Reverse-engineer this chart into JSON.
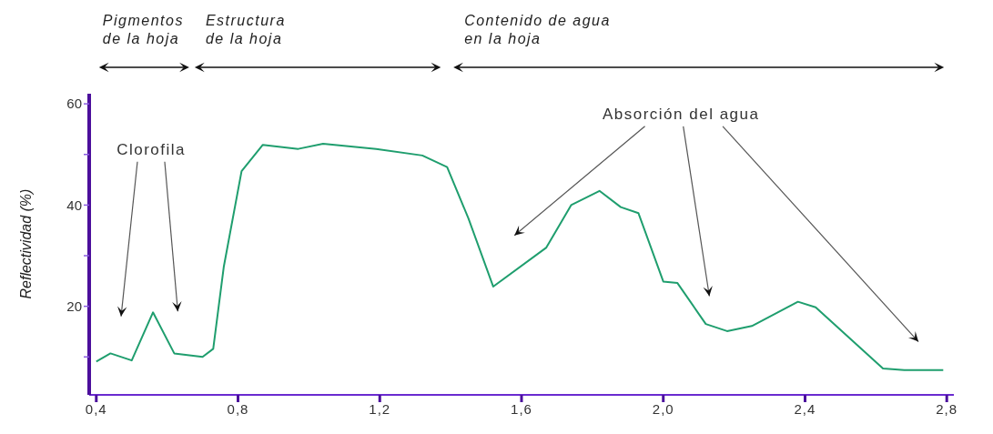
{
  "chart_data": {
    "type": "line",
    "ylabel": "Reflectividad (%)",
    "x": [
      0.4,
      0.44,
      0.5,
      0.56,
      0.62,
      0.7,
      0.73,
      0.76,
      0.81,
      0.87,
      0.97,
      1.04,
      1.19,
      1.32,
      1.39,
      1.45,
      1.52,
      1.67,
      1.74,
      1.82,
      1.88,
      1.93,
      2.0,
      2.04,
      2.12,
      2.18,
      2.25,
      2.38,
      2.43,
      2.62,
      2.68,
      2.79
    ],
    "series": [
      {
        "color": "#1f9e6e",
        "values": [
          9.1,
          10.7,
          9.3,
          18.8,
          10.7,
          10.0,
          11.6,
          27.9,
          46.7,
          51.9,
          51.1,
          52.1,
          51.1,
          49.8,
          47.5,
          37.4,
          23.9,
          31.6,
          40,
          42.8,
          39.6,
          38.4,
          24.9,
          24.6,
          16.5,
          15.1,
          16.1,
          20.9,
          19.8,
          7.7,
          7.4,
          7.4
        ]
      }
    ],
    "xlim": [
      0.38,
      2.82
    ],
    "xticks": [
      {
        "value": 0.4,
        "label": "0,4"
      },
      {
        "value": 0.8,
        "label": "0,8"
      },
      {
        "value": 1.2,
        "label": "1,2"
      },
      {
        "value": 1.6,
        "label": "1,6"
      },
      {
        "value": 2.0,
        "label": "2,0"
      },
      {
        "value": 2.4,
        "label": "2,4"
      },
      {
        "value": 2.8,
        "label": "2,8"
      }
    ],
    "ylim": [
      2.5,
      62
    ],
    "yticks": [
      {
        "value": 10,
        "label": null
      },
      20,
      {
        "value": 30,
        "label": null
      },
      40,
      {
        "value": 50,
        "label": null
      },
      60
    ],
    "annotations": [
      "Pigmentos\nde la hoja",
      "Estructura\nde la hoja",
      "Contenido de agua\nen la hoja",
      "Clorofila",
      "Absorción del agua"
    ]
  }
}
